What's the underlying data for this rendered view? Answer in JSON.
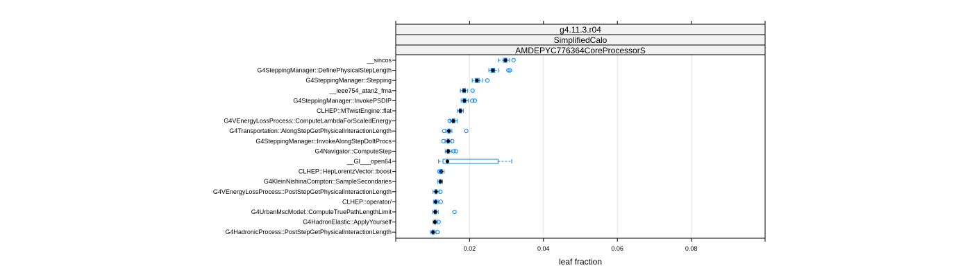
{
  "strips": [
    "g4.11.3.r04",
    "SimplifiedCalo",
    "AMDEPYC776364CoreProcessorS"
  ],
  "chart_data": {
    "type": "box",
    "orientation": "horizontal",
    "xlabel": "leaf fraction",
    "xlim": [
      0.0,
      0.1
    ],
    "xticks": [
      0.02,
      0.04,
      0.06,
      0.08
    ],
    "xtick_labels": [
      "0.02",
      "0.04",
      "0.06",
      "0.08"
    ],
    "grid": true,
    "colors": {
      "box": "#0080ff",
      "median": "#000000",
      "grid": "#e6e6e6",
      "strip": "#f2f2f2"
    },
    "categories": [
      "__sincos",
      "G4SteppingManager::DefinePhysicalStepLength",
      "G4SteppingManager::Stepping",
      "__ieee754_atan2_fma",
      "G4SteppingManager::InvokePSDIP",
      "CLHEP::MTwistEngine::flat",
      "G4VEnergyLossProcess::ComputeLambdaForScaledEnergy",
      "G4Transportation::AlongStepGetPhysicalInteractionLength",
      "G4SteppingManager::InvokeAlongStepDoItProcs",
      "G4Navigator::ComputeStep",
      "__GI___open64",
      "CLHEP::HepLorentzVector::boost",
      "G4KleinNishinaCompton::SampleSecondaries",
      "G4VEnergyLossProcess::PostStepGetPhysicalInteractionLength",
      "CLHEP::operator/",
      "G4UrbanMscModel::ComputeTruePathLengthLimit",
      "G4HadronElastic::ApplyYourself",
      "G4HadronicProcess::PostStepGetPhysicalInteractionLength"
    ],
    "boxes": [
      {
        "whisker_low": 0.0278,
        "q1": 0.0291,
        "median": 0.0297,
        "q3": 0.0301,
        "whisker_high": 0.0308,
        "outliers": [
          0.0319
        ]
      },
      {
        "whisker_low": 0.0252,
        "q1": 0.0258,
        "median": 0.0263,
        "q3": 0.0268,
        "whisker_high": 0.0278,
        "outliers": [
          0.0305,
          0.0309
        ]
      },
      {
        "whisker_low": 0.0207,
        "q1": 0.0215,
        "median": 0.022,
        "q3": 0.0226,
        "whisker_high": 0.0235,
        "outliers": [
          0.0248
        ]
      },
      {
        "whisker_low": 0.0175,
        "q1": 0.0181,
        "median": 0.0185,
        "q3": 0.0189,
        "whisker_high": 0.0195,
        "outliers": [
          0.0208
        ]
      },
      {
        "whisker_low": 0.0177,
        "q1": 0.0182,
        "median": 0.0186,
        "q3": 0.019,
        "whisker_high": 0.0196,
        "outliers": [
          0.0207,
          0.0214
        ]
      },
      {
        "whisker_low": 0.0167,
        "q1": 0.0172,
        "median": 0.0175,
        "q3": 0.0178,
        "whisker_high": 0.0183,
        "outliers": []
      },
      {
        "whisker_low": 0.0147,
        "q1": 0.0153,
        "median": 0.0156,
        "q3": 0.016,
        "whisker_high": 0.0166,
        "outliers": [
          0.0146
        ]
      },
      {
        "whisker_low": 0.0136,
        "q1": 0.0141,
        "median": 0.0144,
        "q3": 0.0147,
        "whisker_high": 0.0152,
        "outliers": [
          0.0131,
          0.0191
        ]
      },
      {
        "whisker_low": 0.0134,
        "q1": 0.0139,
        "median": 0.0142,
        "q3": 0.0145,
        "whisker_high": 0.015,
        "outliers": [
          0.0129,
          0.0153
        ]
      },
      {
        "whisker_low": 0.0134,
        "q1": 0.0139,
        "median": 0.0142,
        "q3": 0.0145,
        "whisker_high": 0.015,
        "outliers": [
          0.0157,
          0.0163
        ]
      },
      {
        "whisker_low": 0.0116,
        "q1": 0.0128,
        "median": 0.014,
        "q3": 0.0277,
        "whisker_high": 0.0314,
        "outliers": []
      },
      {
        "whisker_low": 0.0117,
        "q1": 0.0121,
        "median": 0.0123,
        "q3": 0.0126,
        "whisker_high": 0.0131,
        "outliers": [
          0.0118
        ]
      },
      {
        "whisker_low": 0.0114,
        "q1": 0.0118,
        "median": 0.0121,
        "q3": 0.0123,
        "whisker_high": 0.0127,
        "outliers": []
      },
      {
        "whisker_low": 0.0101,
        "q1": 0.0106,
        "median": 0.0109,
        "q3": 0.0112,
        "whisker_high": 0.0117,
        "outliers": [
          0.0121
        ]
      },
      {
        "whisker_low": 0.0102,
        "q1": 0.0106,
        "median": 0.0108,
        "q3": 0.0111,
        "whisker_high": 0.0115,
        "outliers": [
          0.0122
        ]
      },
      {
        "whisker_low": 0.01,
        "q1": 0.0104,
        "median": 0.0107,
        "q3": 0.011,
        "whisker_high": 0.0115,
        "outliers": [
          0.0159
        ]
      },
      {
        "whisker_low": 0.0101,
        "q1": 0.0104,
        "median": 0.0106,
        "q3": 0.0109,
        "whisker_high": 0.0113,
        "outliers": [
          0.0116
        ]
      },
      {
        "whisker_low": 0.0094,
        "q1": 0.0098,
        "median": 0.0101,
        "q3": 0.0104,
        "whisker_high": 0.0109,
        "outliers": [
          0.0113
        ]
      }
    ]
  }
}
